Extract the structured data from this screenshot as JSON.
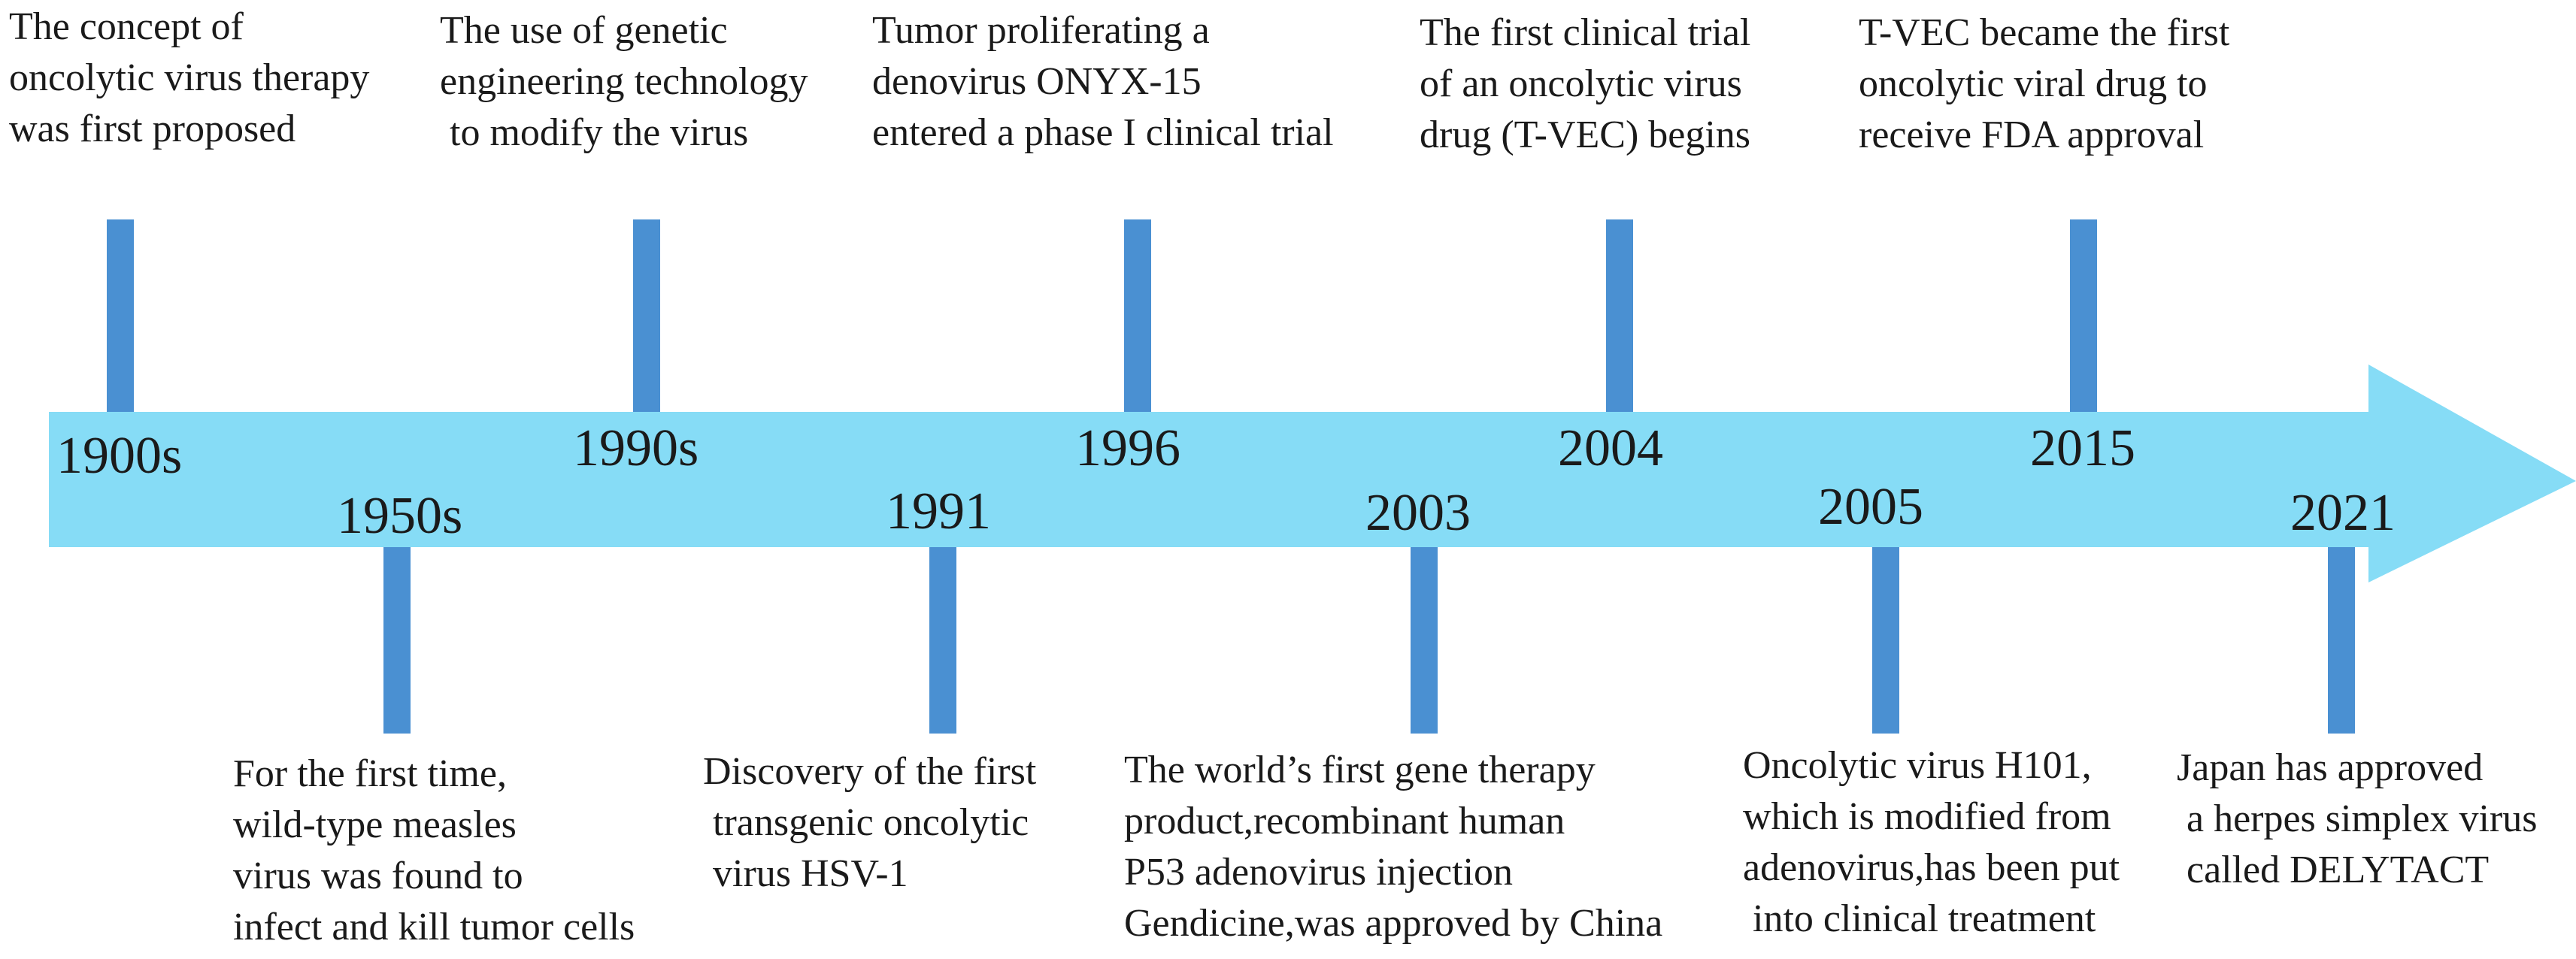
{
  "colors": {
    "arrow": "#86dcf6",
    "stem": "#4a90d2",
    "text": "#1a1a1a"
  },
  "events": [
    {
      "year": "1900s",
      "text": "The concept of\noncolytic virus therapy\nwas first proposed"
    },
    {
      "year": "1950s",
      "text": "For the first time,\nwild-type measles\nvirus was found to\ninfect and kill tumor cells"
    },
    {
      "year": "1990s",
      "text": "The use of genetic\nengineering technology\n to modify the virus"
    },
    {
      "year": "1991",
      "text": "Discovery of the first\n transgenic oncolytic\n virus HSV-1"
    },
    {
      "year": "1996",
      "text": "Tumor proliferating a\ndenovirus ONYX-15\nentered a phase I clinical trial"
    },
    {
      "year": "2003",
      "text": "The world’s first gene therapy\nproduct,recombinant human\nP53 adenovirus injection\nGendicine,was approved by China"
    },
    {
      "year": "2004",
      "text": "The first clinical trial\nof an oncolytic virus\ndrug (T-VEC) begins"
    },
    {
      "year": "2005",
      "text": "Oncolytic virus H101,\nwhich is modified from\nadenovirus,has been put\n into clinical treatment"
    },
    {
      "year": "2015",
      "text": "T-VEC became the first\noncolytic viral drug to\nreceive FDA approval"
    },
    {
      "year": "2021",
      "text": "Japan has approved\n a herpes simplex virus\n called DELYTACT"
    }
  ]
}
